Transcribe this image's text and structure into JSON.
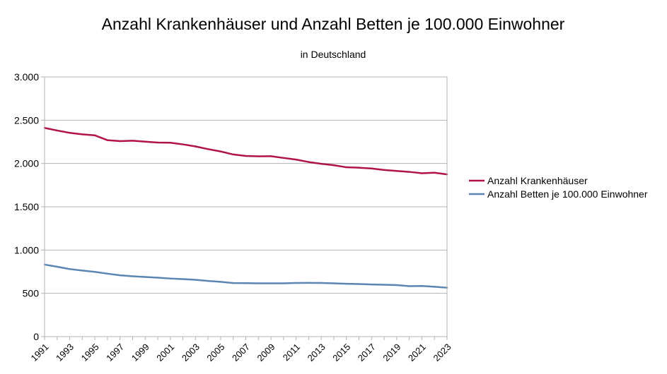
{
  "chart_data": {
    "type": "line",
    "title": "Anzahl Krankenhäuser und Anzahl Betten je 100.000 Einwohner",
    "subtitle": "in Deutschland",
    "xlabel": "",
    "ylabel": "",
    "ylim": [
      0,
      3000
    ],
    "yticks": [
      0,
      500,
      1000,
      1500,
      2000,
      2500,
      3000
    ],
    "ytick_labels": [
      "0",
      "500",
      "1.000",
      "1.500",
      "2.000",
      "2.500",
      "3.000"
    ],
    "x": [
      1991,
      1992,
      1993,
      1994,
      1995,
      1996,
      1997,
      1998,
      1999,
      2000,
      2001,
      2002,
      2003,
      2004,
      2005,
      2006,
      2007,
      2008,
      2009,
      2010,
      2011,
      2012,
      2013,
      2014,
      2015,
      2016,
      2017,
      2018,
      2019,
      2020,
      2021,
      2022,
      2023
    ],
    "xtick_labels": [
      "1991",
      "1993",
      "1995",
      "1997",
      "1999",
      "2001",
      "2003",
      "2005",
      "2007",
      "2009",
      "2011",
      "2013",
      "2015",
      "2017",
      "2019",
      "2021",
      "2023"
    ],
    "grid": true,
    "legend_position": "right",
    "series": [
      {
        "name": "Anzahl Krankenhäuser",
        "color": "#b0134a",
        "values": [
          2411,
          2381,
          2354,
          2337,
          2325,
          2269,
          2258,
          2263,
          2252,
          2242,
          2240,
          2221,
          2197,
          2166,
          2139,
          2104,
          2087,
          2083,
          2084,
          2064,
          2045,
          2017,
          1996,
          1980,
          1956,
          1951,
          1942,
          1925,
          1914,
          1903,
          1887,
          1893,
          1874
        ]
      },
      {
        "name": "Anzahl Betten je 100.000 Einwohner",
        "color": "#5b85b3",
        "values": [
          832,
          807,
          780,
          763,
          748,
          727,
          708,
          697,
          689,
          681,
          671,
          664,
          656,
          643,
          633,
          619,
          617,
          616,
          616,
          615,
          620,
          621,
          620,
          615,
          610,
          607,
          602,
          599,
          595,
          583,
          585,
          576,
          565
        ]
      }
    ]
  }
}
